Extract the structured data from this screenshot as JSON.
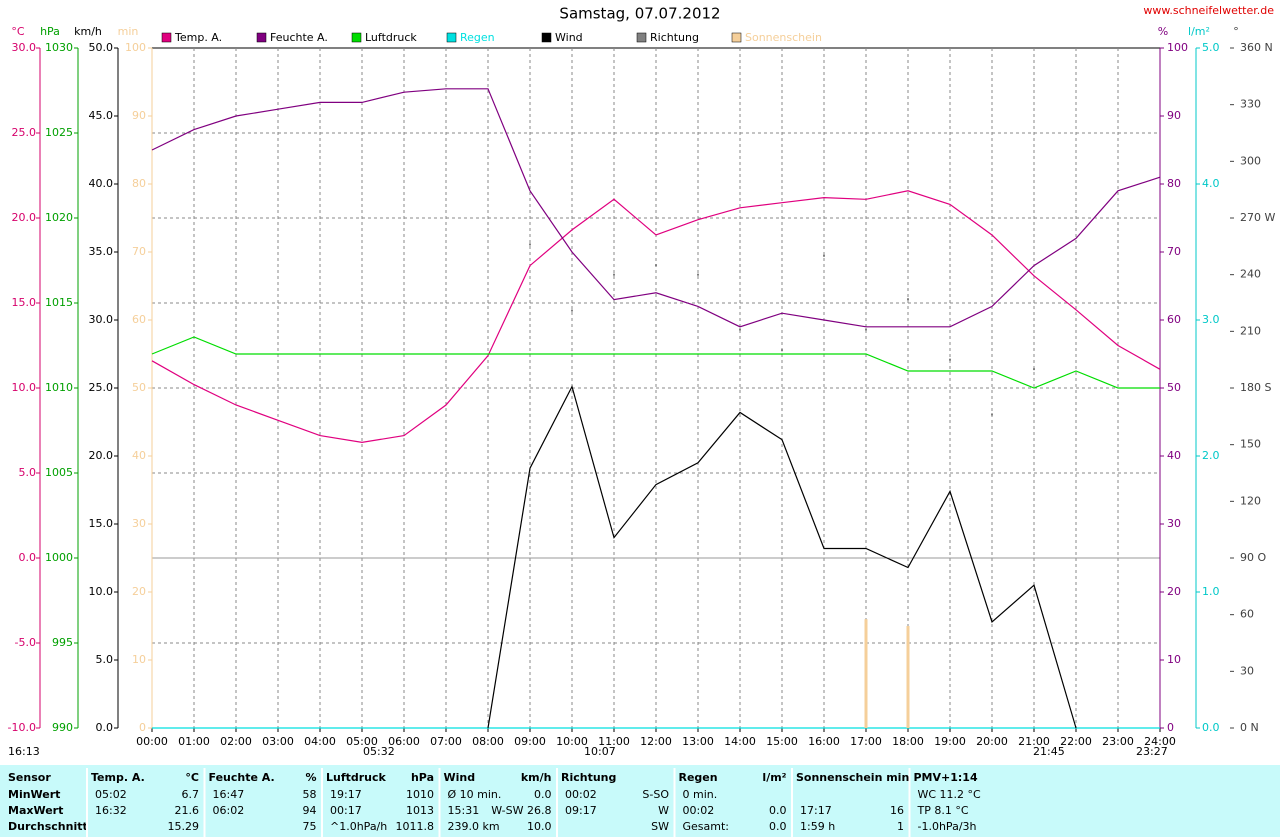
{
  "chart_data": {
    "type": "line",
    "title": "Samstag, 07.07.2012",
    "site": "www.schneifelwetter.de",
    "categories": [
      "00:00",
      "01:00",
      "02:00",
      "03:00",
      "04:00",
      "05:00",
      "06:00",
      "07:00",
      "08:00",
      "09:00",
      "10:00",
      "11:00",
      "12:00",
      "13:00",
      "14:00",
      "15:00",
      "16:00",
      "17:00",
      "18:00",
      "19:00",
      "20:00",
      "21:00",
      "22:00",
      "23:00",
      "24:00"
    ],
    "grid": true,
    "grid_axis": "°C",
    "axes": [
      {
        "unit": "°C",
        "color": "#d6006b",
        "lim": [
          -10,
          30
        ],
        "ticks": [
          {
            "value": -10,
            "label": "-10.0"
          },
          {
            "value": -5,
            "label": "-5.0"
          },
          {
            "value": 0,
            "label": "0.0"
          },
          {
            "value": 5,
            "label": "5.0"
          },
          {
            "value": 10,
            "label": "10.0"
          },
          {
            "value": 15,
            "label": "15.0"
          },
          {
            "value": 20,
            "label": "20.0"
          },
          {
            "value": 25,
            "label": "25.0"
          },
          {
            "value": 30,
            "label": "30.0"
          }
        ]
      },
      {
        "unit": "hPa",
        "color": "#00a000",
        "lim": [
          990,
          1030
        ],
        "ticks": [
          990,
          995,
          1000,
          1005,
          1010,
          1015,
          1020,
          1025,
          1030
        ]
      },
      {
        "unit": "km/h",
        "color": "#000000",
        "lim": [
          0,
          50
        ],
        "ticks": [
          {
            "value": 0,
            "label": "0.0"
          },
          {
            "value": 5,
            "label": "5.0"
          },
          {
            "value": 10,
            "label": "10.0"
          },
          {
            "value": 15,
            "label": "15.0"
          },
          {
            "value": 20,
            "label": "20.0"
          },
          {
            "value": 25,
            "label": "25.0"
          },
          {
            "value": 30,
            "label": "30.0"
          },
          {
            "value": 35,
            "label": "35.0"
          },
          {
            "value": 40,
            "label": "40.0"
          },
          {
            "value": 45,
            "label": "45.0"
          },
          {
            "value": 50,
            "label": "50.0"
          }
        ]
      },
      {
        "unit": "min",
        "color": "#f5cf9a",
        "lim": [
          0,
          100
        ],
        "ticks": [
          0,
          10,
          20,
          30,
          40,
          50,
          60,
          70,
          80,
          90,
          100
        ]
      },
      {
        "unit": "%",
        "color": "#800080",
        "lim": [
          0,
          100
        ],
        "ticks": [
          0,
          10,
          20,
          30,
          40,
          50,
          60,
          70,
          80,
          90,
          100
        ]
      },
      {
        "unit": "l/m²",
        "color": "#00c8c8",
        "lim": [
          0,
          5
        ],
        "ticks": [
          {
            "value": 0,
            "label": "0.0"
          },
          {
            "value": 1,
            "label": "1.0"
          },
          {
            "value": 2,
            "label": "2.0"
          },
          {
            "value": 3,
            "label": "3.0"
          },
          {
            "value": 4,
            "label": "4.0"
          },
          {
            "value": 5,
            "label": "5.0"
          }
        ]
      },
      {
        "unit": "°",
        "color": "#404040",
        "lim": [
          0,
          360
        ],
        "ticks": [
          {
            "value": 0,
            "label": "0  N"
          },
          30,
          60,
          {
            "value": 90,
            "label": "90  O"
          },
          120,
          150,
          {
            "value": 180,
            "label": "180  S"
          },
          210,
          240,
          {
            "value": 270,
            "label": "270  W"
          },
          300,
          330,
          {
            "value": 360,
            "label": "360  N"
          }
        ]
      }
    ],
    "series": [
      {
        "name": "Temp. A.",
        "color": "#e0007f",
        "mark": "line",
        "axis": "°C",
        "values": [
          11.6,
          10.2,
          9.0,
          8.1,
          7.2,
          6.8,
          7.2,
          9.0,
          11.9,
          17.2,
          19.3,
          21.1,
          19.0,
          19.9,
          20.6,
          20.9,
          21.2,
          21.1,
          21.6,
          20.8,
          19.0,
          16.6,
          14.6,
          12.5,
          11.1
        ]
      },
      {
        "name": "Feuchte A.",
        "color": "#800080",
        "mark": "line",
        "axis": "%",
        "values": [
          85,
          88,
          90,
          91,
          92,
          92,
          93.5,
          94,
          94,
          79,
          70,
          63,
          64,
          62,
          59,
          61,
          60,
          59,
          59,
          59,
          62,
          68,
          72,
          79,
          81
        ]
      },
      {
        "name": "Luftdruck",
        "color": "#00dd00",
        "mark": "line",
        "axis": "hPa",
        "values": [
          1012,
          1013,
          1012,
          1012,
          1012,
          1012,
          1012,
          1012,
          1012,
          1012,
          1012,
          1012,
          1012,
          1012,
          1012,
          1012,
          1012,
          1012,
          1011,
          1011,
          1011,
          1010,
          1011,
          1010,
          1010
        ]
      },
      {
        "name": "Regen",
        "color": "#00e0e0",
        "mark": "line",
        "axis": "l/m²",
        "values": [
          0,
          0,
          0,
          0,
          0,
          0,
          0,
          0,
          0,
          0,
          0,
          0,
          0,
          0,
          0,
          0,
          0,
          0,
          0,
          0,
          0,
          0,
          0,
          0,
          0
        ]
      },
      {
        "name": "Wind",
        "color": "#000000",
        "mark": "line",
        "axis": "km/h",
        "values": [
          null,
          null,
          null,
          null,
          null,
          null,
          null,
          null,
          0,
          19.1,
          25.1,
          14,
          17.9,
          19.5,
          23.2,
          21.2,
          13.2,
          13.2,
          11.8,
          17.4,
          7.8,
          10.5,
          0,
          null,
          null
        ]
      },
      {
        "name": "Richtung",
        "color": "#808080",
        "mark": "scatter",
        "axis": "°",
        "values": [
          null,
          null,
          null,
          null,
          null,
          null,
          null,
          null,
          null,
          256,
          221,
          240,
          245,
          240,
          211,
          200,
          250,
          211,
          227,
          195,
          166,
          190,
          null,
          null,
          null
        ]
      },
      {
        "name": "Sonnenschein",
        "color": "#f5cf9a",
        "mark": "bar",
        "axis": "min",
        "values": [
          null,
          null,
          null,
          null,
          null,
          null,
          null,
          null,
          null,
          null,
          null,
          null,
          null,
          null,
          null,
          null,
          null,
          16,
          15,
          null,
          null,
          null,
          null,
          null,
          null
        ]
      }
    ],
    "annotations": [
      "16:13",
      "05:32",
      "10:07",
      "21:45",
      "23:27"
    ]
  },
  "stats": {
    "labels": [
      "Sensor",
      "MinWert",
      "MaxWert",
      "Durchschnitt"
    ],
    "columns": [
      {
        "title": "Temp. A.",
        "unit": "°C",
        "rows": [
          {
            "l": "05:02",
            "r": "6.7"
          },
          {
            "l": "16:32",
            "r": "21.6"
          },
          {
            "r": "15.29"
          }
        ]
      },
      {
        "title": "Feuchte A.",
        "unit": "%",
        "rows": [
          {
            "l": "16:47",
            "r": "58"
          },
          {
            "l": "06:02",
            "r": "94"
          },
          {
            "r": "75"
          }
        ]
      },
      {
        "title": "Luftdruck",
        "unit": "hPa",
        "rows": [
          {
            "l": "19:17",
            "r": "1010"
          },
          {
            "l": "00:17",
            "r": "1013"
          },
          {
            "l": "^1.0hPa/h",
            "r": "1011.8"
          }
        ]
      },
      {
        "title": "Wind",
        "unit": "km/h",
        "rows": [
          {
            "l": "Ø 10 min.",
            "r": "0.0"
          },
          {
            "l": "15:31",
            "r": "W-SW 26.8"
          },
          {
            "l": "239.0 km",
            "r": "10.0"
          }
        ]
      },
      {
        "title": "Richtung",
        "rows": [
          {
            "l": "00:02",
            "r": "S-SO"
          },
          {
            "l": "09:17",
            "r": "W"
          },
          {
            "r": "SW"
          }
        ]
      },
      {
        "title": "Regen",
        "unit": "l/m²",
        "rows": [
          {
            "l": "0 min."
          },
          {
            "l": "00:02",
            "r": "0.0"
          },
          {
            "l": "Gesamt:",
            "r": "0.0"
          }
        ]
      },
      {
        "title": "Sonnenschein min",
        "rows": [
          {},
          {
            "l": "17:17",
            "r": "16"
          },
          {
            "l": "1:59 h",
            "r": "1"
          }
        ]
      },
      {
        "title": "PMV+1:14",
        "rows": [
          {
            "l": "WC 11.2 °C"
          },
          {
            "l": "TP 8.1 °C"
          },
          {
            "l": "-1.0hPa/3h"
          }
        ]
      }
    ]
  }
}
